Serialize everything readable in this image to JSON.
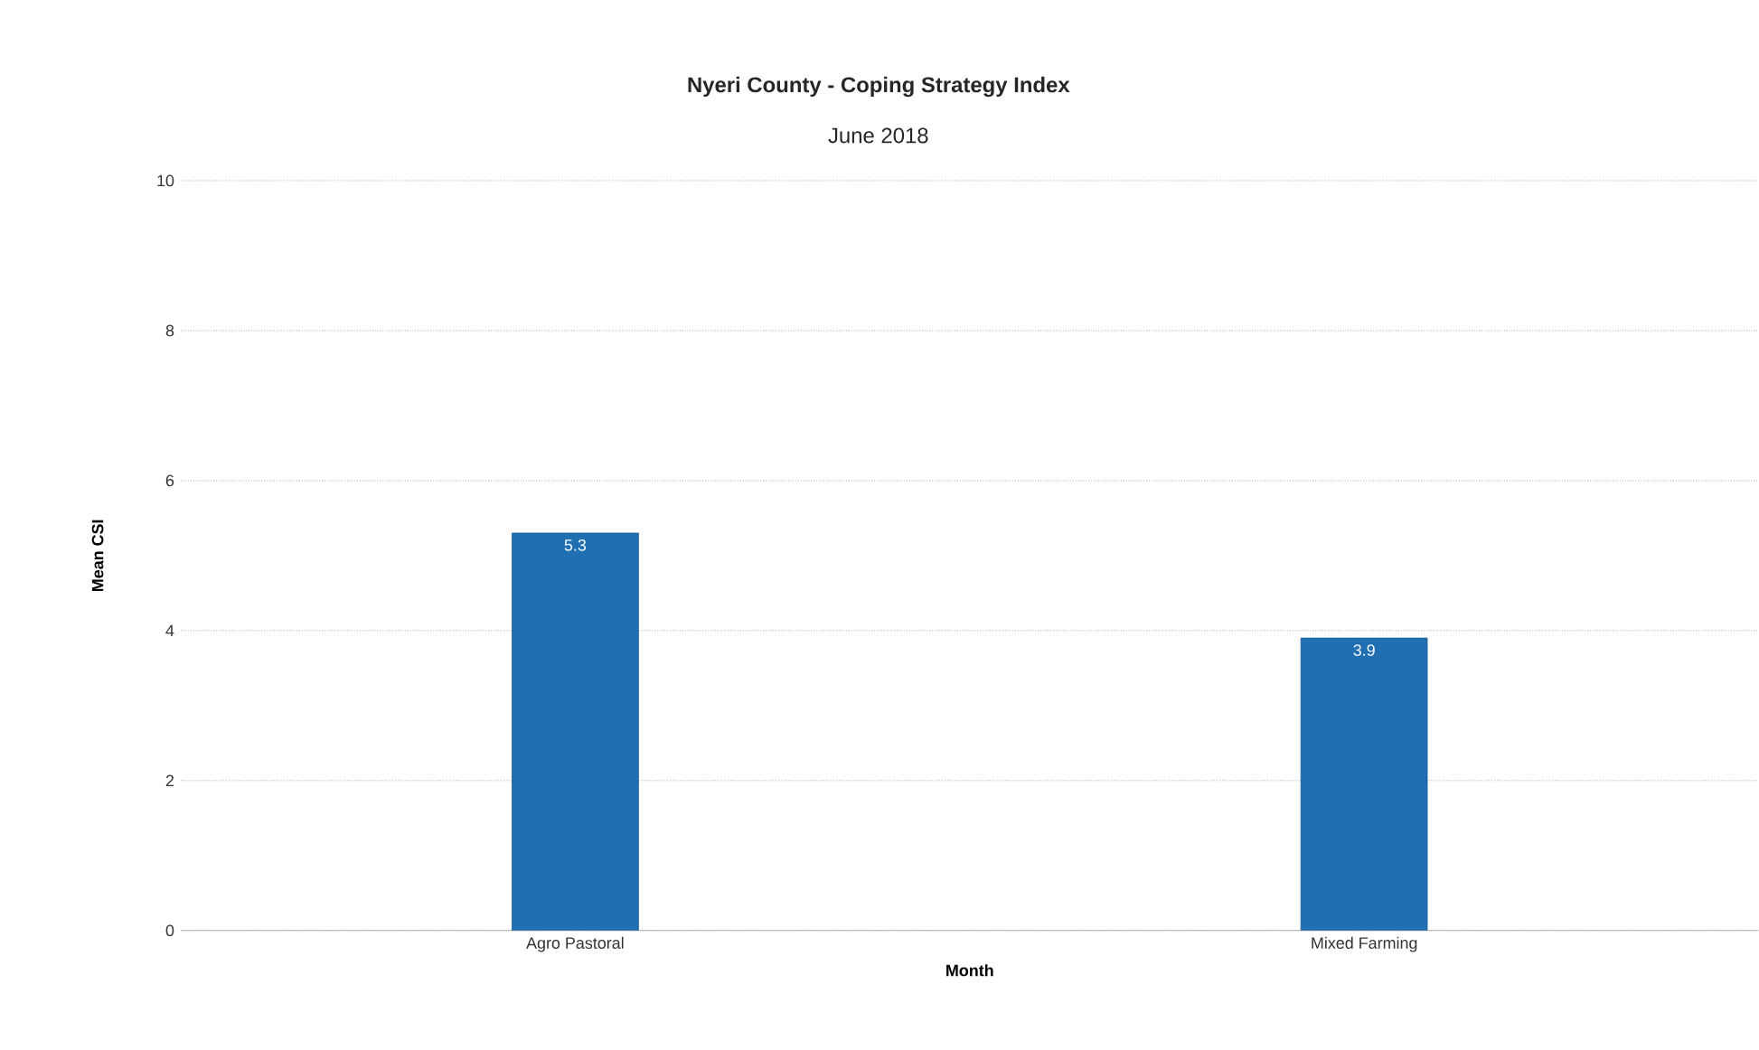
{
  "chart_data": {
    "type": "bar",
    "title": "Nyeri County - Coping Strategy Index",
    "subtitle": "June 2018",
    "xlabel": "Month",
    "ylabel": "Mean CSI",
    "categories": [
      "Agro Pastoral",
      "Mixed Farming"
    ],
    "values": [
      5.3,
      3.9
    ],
    "color": "#1f6fb2",
    "ylim": [
      0,
      10
    ],
    "yticks": [
      0,
      2,
      4,
      6,
      8,
      10
    ],
    "grid": "y",
    "data_labels": true
  }
}
